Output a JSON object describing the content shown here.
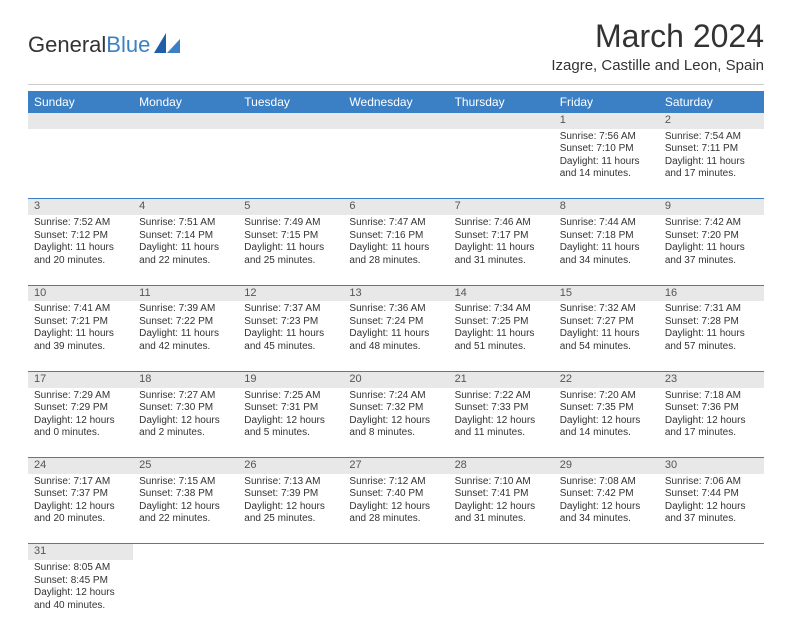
{
  "brand": {
    "part1": "General",
    "part2": "Blue"
  },
  "title": "March 2024",
  "location": "Izagre, Castille and Leon, Spain",
  "colors": {
    "header_bg": "#3b7fc4",
    "header_text": "#ffffff",
    "daynum_bg": "#e8e8e8",
    "divider": "#3b7fc4",
    "text": "#333333",
    "background": "#ffffff"
  },
  "typography": {
    "title_fontsize": 32,
    "subtitle_fontsize": 15,
    "dayhdr_fontsize": 12,
    "cell_fontsize": 10
  },
  "weekdays": [
    "Sunday",
    "Monday",
    "Tuesday",
    "Wednesday",
    "Thursday",
    "Friday",
    "Saturday"
  ],
  "weeks": [
    [
      null,
      null,
      null,
      null,
      null,
      {
        "d": "1",
        "sr": "Sunrise: 7:56 AM",
        "ss": "Sunset: 7:10 PM",
        "dl": "Daylight: 11 hours and 14 minutes."
      },
      {
        "d": "2",
        "sr": "Sunrise: 7:54 AM",
        "ss": "Sunset: 7:11 PM",
        "dl": "Daylight: 11 hours and 17 minutes."
      }
    ],
    [
      {
        "d": "3",
        "sr": "Sunrise: 7:52 AM",
        "ss": "Sunset: 7:12 PM",
        "dl": "Daylight: 11 hours and 20 minutes."
      },
      {
        "d": "4",
        "sr": "Sunrise: 7:51 AM",
        "ss": "Sunset: 7:14 PM",
        "dl": "Daylight: 11 hours and 22 minutes."
      },
      {
        "d": "5",
        "sr": "Sunrise: 7:49 AM",
        "ss": "Sunset: 7:15 PM",
        "dl": "Daylight: 11 hours and 25 minutes."
      },
      {
        "d": "6",
        "sr": "Sunrise: 7:47 AM",
        "ss": "Sunset: 7:16 PM",
        "dl": "Daylight: 11 hours and 28 minutes."
      },
      {
        "d": "7",
        "sr": "Sunrise: 7:46 AM",
        "ss": "Sunset: 7:17 PM",
        "dl": "Daylight: 11 hours and 31 minutes."
      },
      {
        "d": "8",
        "sr": "Sunrise: 7:44 AM",
        "ss": "Sunset: 7:18 PM",
        "dl": "Daylight: 11 hours and 34 minutes."
      },
      {
        "d": "9",
        "sr": "Sunrise: 7:42 AM",
        "ss": "Sunset: 7:20 PM",
        "dl": "Daylight: 11 hours and 37 minutes."
      }
    ],
    [
      {
        "d": "10",
        "sr": "Sunrise: 7:41 AM",
        "ss": "Sunset: 7:21 PM",
        "dl": "Daylight: 11 hours and 39 minutes."
      },
      {
        "d": "11",
        "sr": "Sunrise: 7:39 AM",
        "ss": "Sunset: 7:22 PM",
        "dl": "Daylight: 11 hours and 42 minutes."
      },
      {
        "d": "12",
        "sr": "Sunrise: 7:37 AM",
        "ss": "Sunset: 7:23 PM",
        "dl": "Daylight: 11 hours and 45 minutes."
      },
      {
        "d": "13",
        "sr": "Sunrise: 7:36 AM",
        "ss": "Sunset: 7:24 PM",
        "dl": "Daylight: 11 hours and 48 minutes."
      },
      {
        "d": "14",
        "sr": "Sunrise: 7:34 AM",
        "ss": "Sunset: 7:25 PM",
        "dl": "Daylight: 11 hours and 51 minutes."
      },
      {
        "d": "15",
        "sr": "Sunrise: 7:32 AM",
        "ss": "Sunset: 7:27 PM",
        "dl": "Daylight: 11 hours and 54 minutes."
      },
      {
        "d": "16",
        "sr": "Sunrise: 7:31 AM",
        "ss": "Sunset: 7:28 PM",
        "dl": "Daylight: 11 hours and 57 minutes."
      }
    ],
    [
      {
        "d": "17",
        "sr": "Sunrise: 7:29 AM",
        "ss": "Sunset: 7:29 PM",
        "dl": "Daylight: 12 hours and 0 minutes."
      },
      {
        "d": "18",
        "sr": "Sunrise: 7:27 AM",
        "ss": "Sunset: 7:30 PM",
        "dl": "Daylight: 12 hours and 2 minutes."
      },
      {
        "d": "19",
        "sr": "Sunrise: 7:25 AM",
        "ss": "Sunset: 7:31 PM",
        "dl": "Daylight: 12 hours and 5 minutes."
      },
      {
        "d": "20",
        "sr": "Sunrise: 7:24 AM",
        "ss": "Sunset: 7:32 PM",
        "dl": "Daylight: 12 hours and 8 minutes."
      },
      {
        "d": "21",
        "sr": "Sunrise: 7:22 AM",
        "ss": "Sunset: 7:33 PM",
        "dl": "Daylight: 12 hours and 11 minutes."
      },
      {
        "d": "22",
        "sr": "Sunrise: 7:20 AM",
        "ss": "Sunset: 7:35 PM",
        "dl": "Daylight: 12 hours and 14 minutes."
      },
      {
        "d": "23",
        "sr": "Sunrise: 7:18 AM",
        "ss": "Sunset: 7:36 PM",
        "dl": "Daylight: 12 hours and 17 minutes."
      }
    ],
    [
      {
        "d": "24",
        "sr": "Sunrise: 7:17 AM",
        "ss": "Sunset: 7:37 PM",
        "dl": "Daylight: 12 hours and 20 minutes."
      },
      {
        "d": "25",
        "sr": "Sunrise: 7:15 AM",
        "ss": "Sunset: 7:38 PM",
        "dl": "Daylight: 12 hours and 22 minutes."
      },
      {
        "d": "26",
        "sr": "Sunrise: 7:13 AM",
        "ss": "Sunset: 7:39 PM",
        "dl": "Daylight: 12 hours and 25 minutes."
      },
      {
        "d": "27",
        "sr": "Sunrise: 7:12 AM",
        "ss": "Sunset: 7:40 PM",
        "dl": "Daylight: 12 hours and 28 minutes."
      },
      {
        "d": "28",
        "sr": "Sunrise: 7:10 AM",
        "ss": "Sunset: 7:41 PM",
        "dl": "Daylight: 12 hours and 31 minutes."
      },
      {
        "d": "29",
        "sr": "Sunrise: 7:08 AM",
        "ss": "Sunset: 7:42 PM",
        "dl": "Daylight: 12 hours and 34 minutes."
      },
      {
        "d": "30",
        "sr": "Sunrise: 7:06 AM",
        "ss": "Sunset: 7:44 PM",
        "dl": "Daylight: 12 hours and 37 minutes."
      }
    ],
    [
      {
        "d": "31",
        "sr": "Sunrise: 8:05 AM",
        "ss": "Sunset: 8:45 PM",
        "dl": "Daylight: 12 hours and 40 minutes."
      },
      null,
      null,
      null,
      null,
      null,
      null
    ]
  ]
}
